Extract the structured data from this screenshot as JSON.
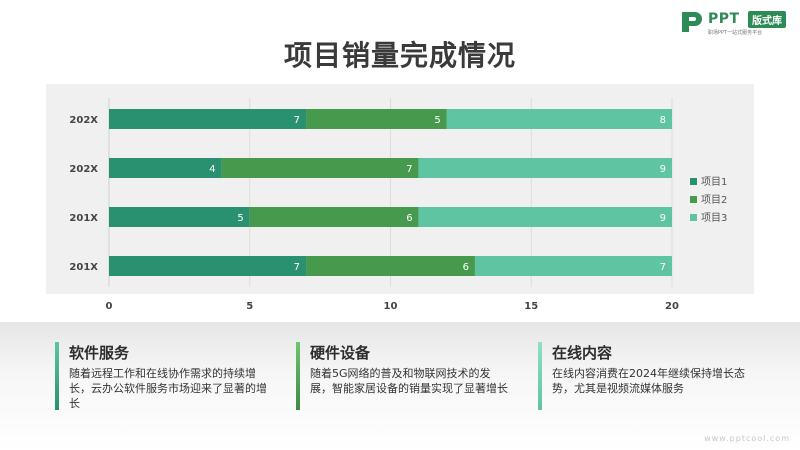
{
  "logo": {
    "brand": "PPT",
    "badge": "版式库",
    "tagline": "职场PPT一站式服务平台"
  },
  "title": "项目销量完成情况",
  "colors": {
    "series1": "#2a9170",
    "series2": "#47994e",
    "series3": "#5ec4a2",
    "panel": "#f0f0f0"
  },
  "chart_data": {
    "type": "bar",
    "orientation": "horizontal",
    "stacked": true,
    "categories": [
      "202X",
      "202X",
      "201X",
      "201X"
    ],
    "series": [
      {
        "name": "项目1",
        "values": [
          7,
          4,
          5,
          7
        ]
      },
      {
        "name": "项目2",
        "values": [
          5,
          7,
          6,
          6
        ]
      },
      {
        "name": "项目3",
        "values": [
          8,
          9,
          9,
          7
        ]
      }
    ],
    "xlim": [
      0,
      20
    ],
    "xticks": [
      "0",
      "5",
      "10",
      "15",
      "20"
    ],
    "grid": true,
    "legend_position": "right"
  },
  "cards": [
    {
      "title": "软件服务",
      "desc": "随着远程工作和在线协作需求的持续增长，云办公软件服务市场迎来了显著的增长"
    },
    {
      "title": "硬件设备",
      "desc": "随着5G网络的普及和物联网技术的发展，智能家居设备的销量实现了显著增长"
    },
    {
      "title": "在线内容",
      "desc": "在线内容消费在2024年继续保持增长态势，尤其是视频流媒体服务"
    }
  ],
  "watermark": "www.pptcool.com"
}
